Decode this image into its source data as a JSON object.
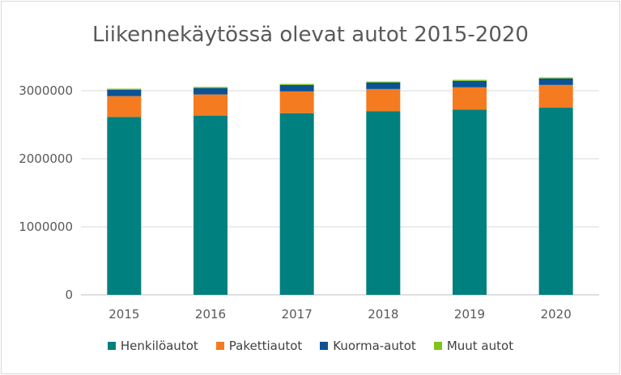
{
  "chart_data": {
    "type": "bar",
    "stacked": true,
    "title": "Liikennekäytössä olevat autot 2015-2020",
    "xlabel": "",
    "ylabel": "",
    "categories": [
      "2015",
      "2016",
      "2017",
      "2018",
      "2019",
      "2020"
    ],
    "ylim": [
      0,
      3000000
    ],
    "yticks": [
      "0",
      "1000000",
      "2000000",
      "3000000"
    ],
    "grid": true,
    "legend_position": "bottom",
    "series": [
      {
        "name": "Henkilöautot",
        "color": "#00807f",
        "values": [
          2615000,
          2635000,
          2670000,
          2700000,
          2720000,
          2750000
        ]
      },
      {
        "name": "Pakettiautot",
        "color": "#f47b20",
        "values": [
          305000,
          310000,
          320000,
          325000,
          330000,
          335000
        ]
      },
      {
        "name": "Kuorma-autot",
        "color": "#0b5394",
        "values": [
          95000,
          95000,
          95000,
          95000,
          95000,
          95000
        ]
      },
      {
        "name": "Muut autot",
        "color": "#7fc31c",
        "values": [
          15000,
          15000,
          15000,
          15000,
          15000,
          15000
        ]
      }
    ]
  }
}
